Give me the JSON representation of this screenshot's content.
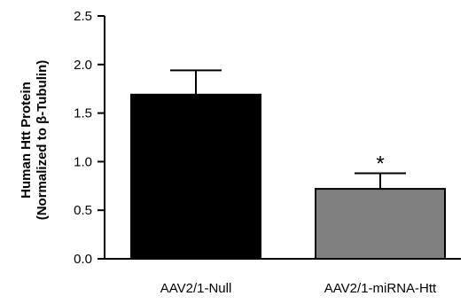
{
  "chart_data": {
    "type": "bar",
    "title": "",
    "xlabel": "",
    "ylabel": "Human Htt Protein",
    "ylabel_line2": "(Normalized to β-Tubulin)",
    "categories": [
      "AAV2/1-Null",
      "AAV2/1-miRNA-Htt"
    ],
    "values": [
      1.69,
      0.72
    ],
    "error_bars": [
      0.25,
      0.16
    ],
    "bar_colors": [
      "#000000",
      "#808080"
    ],
    "ylim": [
      0,
      2.5
    ],
    "yticks": [
      "0.0",
      "0.5",
      "1.0",
      "1.5",
      "2.0",
      "2.5"
    ],
    "ytick_values": [
      0,
      0.5,
      1.0,
      1.5,
      2.0,
      2.5
    ],
    "annotations": [
      {
        "category": "AAV2/1-miRNA-Htt",
        "text": "*"
      }
    ],
    "grid": false,
    "legend": "none"
  }
}
